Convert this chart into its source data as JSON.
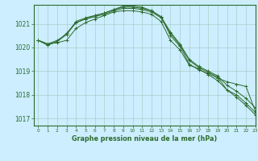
{
  "title": "Graphe pression niveau de la mer (hPa)",
  "background_color": "#cceeff",
  "grid_color": "#aacccc",
  "line_color": "#2d6b2d",
  "xlim": [
    -0.5,
    23
  ],
  "ylim": [
    1016.7,
    1021.8
  ],
  "yticks": [
    1017,
    1018,
    1019,
    1020,
    1021
  ],
  "xticks": [
    0,
    1,
    2,
    3,
    4,
    5,
    6,
    7,
    8,
    9,
    10,
    11,
    12,
    13,
    14,
    15,
    16,
    17,
    18,
    19,
    20,
    21,
    22,
    23
  ],
  "series": [
    [
      1020.3,
      1020.15,
      1020.2,
      1020.3,
      1020.8,
      1021.05,
      1021.2,
      1021.35,
      1021.5,
      1021.55,
      1021.55,
      1021.5,
      1021.4,
      1021.1,
      1020.3,
      1019.9,
      1019.25,
      1019.1,
      1018.85,
      1018.6,
      1018.2,
      1017.9,
      1017.55,
      1017.15
    ],
    [
      1020.3,
      1020.1,
      1020.25,
      1020.6,
      1021.05,
      1021.2,
      1021.35,
      1021.45,
      1021.6,
      1021.75,
      1021.75,
      1021.7,
      1021.55,
      1021.3,
      1020.5,
      1020.05,
      1019.3,
      1019.05,
      1018.9,
      1018.7,
      1018.55,
      1018.45,
      1018.35,
      1017.3
    ],
    [
      1020.3,
      1020.1,
      1020.25,
      1020.55,
      1021.05,
      1021.2,
      1021.3,
      1021.4,
      1021.55,
      1021.65,
      1021.65,
      1021.6,
      1021.5,
      1021.25,
      1020.6,
      1020.1,
      1019.45,
      1019.15,
      1018.95,
      1018.75,
      1018.2,
      1018.0,
      1017.65,
      1017.25
    ],
    [
      1020.3,
      1020.15,
      1020.3,
      1020.55,
      1021.1,
      1021.25,
      1021.35,
      1021.45,
      1021.6,
      1021.7,
      1021.7,
      1021.65,
      1021.55,
      1021.3,
      1020.65,
      1020.15,
      1019.5,
      1019.2,
      1019.0,
      1018.8,
      1018.4,
      1018.15,
      1017.85,
      1017.45
    ]
  ]
}
